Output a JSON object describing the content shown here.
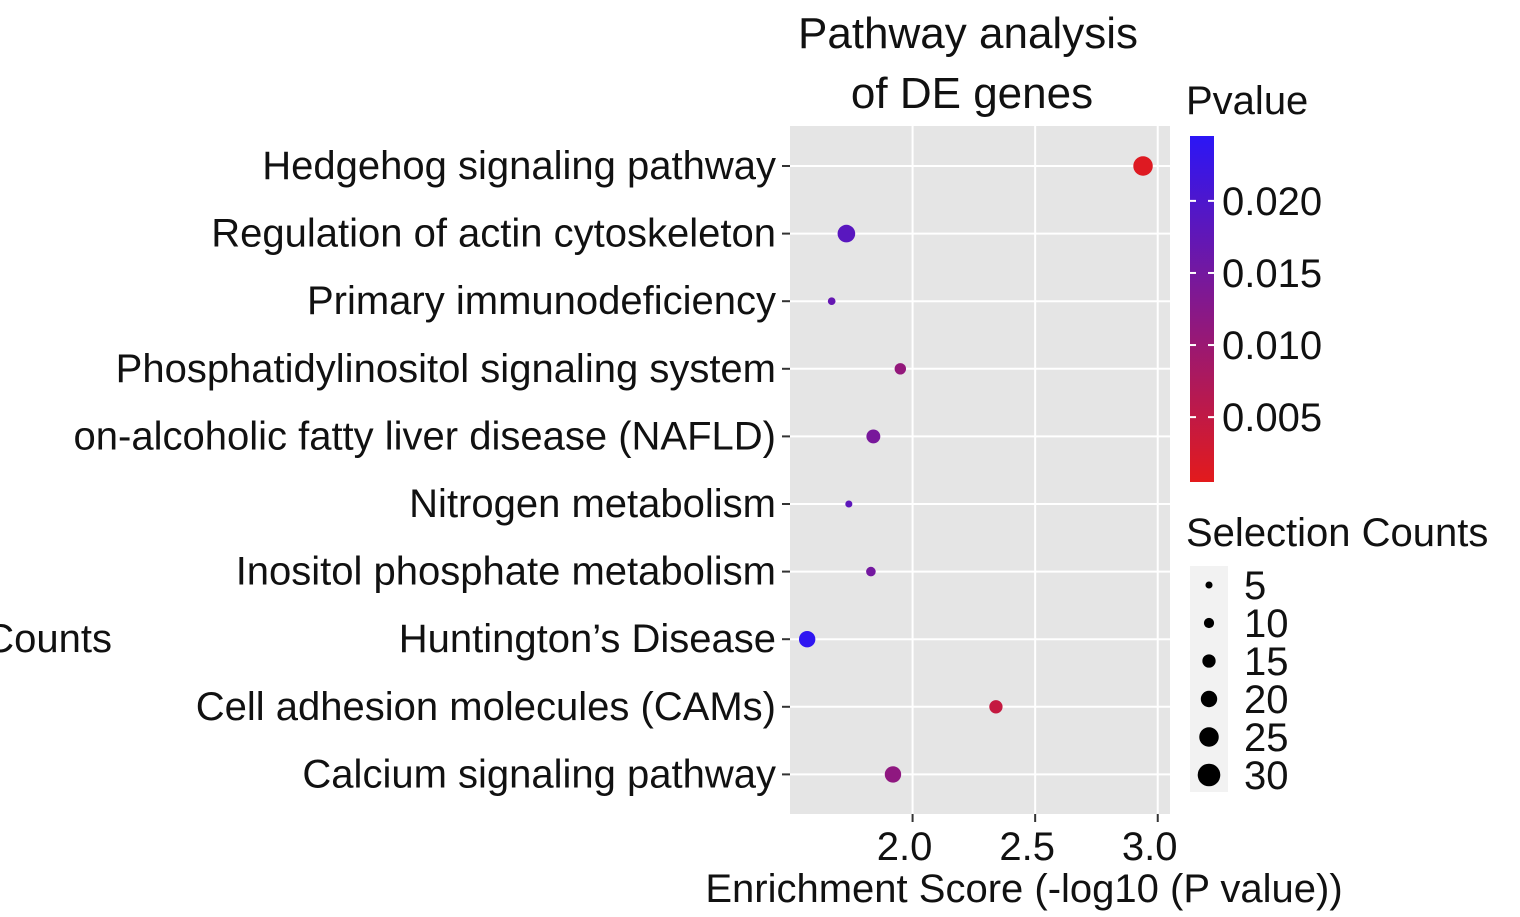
{
  "chart_data": {
    "type": "scatter",
    "title_lines": [
      "Pathway analysis",
      "of DE genes"
    ],
    "xlabel": "Enrichment Score (-log10 (P value))",
    "ylabel": "",
    "xlim": [
      1.5,
      3.05
    ],
    "xticks": [
      "2.0",
      "2.5",
      "3.0"
    ],
    "xtick_values": [
      2.0,
      2.5,
      3.0
    ],
    "grid": true,
    "stray_text": "Counts",
    "pathways": [
      {
        "name": "Hedgehog signaling pathway",
        "enrichment": 2.94,
        "pvalue": 0.0012,
        "count": 25
      },
      {
        "name": "Regulation of actin cytoskeleton",
        "enrichment": 1.73,
        "pvalue": 0.0185,
        "count": 22
      },
      {
        "name": "Primary immunodeficiency",
        "enrichment": 1.67,
        "pvalue": 0.017,
        "count": 6
      },
      {
        "name": "Phosphatidylinositol signaling system",
        "enrichment": 1.95,
        "pvalue": 0.011,
        "count": 12
      },
      {
        "name": "on-alcoholic fatty liver disease (NAFLD)",
        "enrichment": 1.84,
        "pvalue": 0.0145,
        "count": 16
      },
      {
        "name": "Nitrogen metabolism",
        "enrichment": 1.74,
        "pvalue": 0.018,
        "count": 5
      },
      {
        "name": "Inositol phosphate metabolism",
        "enrichment": 1.83,
        "pvalue": 0.015,
        "count": 9
      },
      {
        "name": "Huntington’s Disease",
        "enrichment": 1.57,
        "pvalue": 0.024,
        "count": 20
      },
      {
        "name": "Cell adhesion molecules (CAMs)",
        "enrichment": 2.34,
        "pvalue": 0.0045,
        "count": 15
      },
      {
        "name": "Calcium signaling pathway",
        "enrichment": 1.92,
        "pvalue": 0.0115,
        "count": 20
      }
    ],
    "color_legend": {
      "title": "Pvalue",
      "range": [
        0.0005,
        0.0245
      ],
      "ticks": [
        0.02,
        0.015,
        0.01,
        0.005
      ],
      "tick_labels": [
        "0.020",
        "0.015",
        "0.010",
        "0.005"
      ],
      "low_color": "#e31a1c",
      "high_color": "#2b16f6"
    },
    "size_legend": {
      "title": "Selection Counts",
      "values": [
        5,
        10,
        15,
        20,
        25,
        30
      ],
      "labels": [
        "5",
        "10",
        "15",
        "20",
        "25",
        "30"
      ]
    },
    "panel_color": "#e5e5e5",
    "grid_color": "#ffffff"
  }
}
